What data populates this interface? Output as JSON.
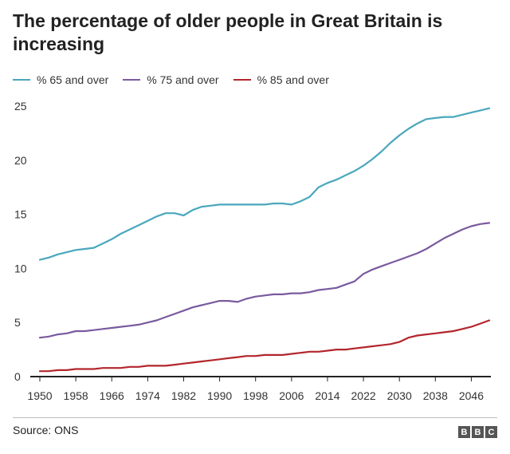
{
  "header": {
    "title": "The percentage of older people in Great Britain is increasing"
  },
  "footer": {
    "source": "Source: ONS",
    "logo": [
      "B",
      "B",
      "C"
    ]
  },
  "chart_data": {
    "type": "line",
    "title": "The percentage of older people in Great Britain is increasing",
    "xlabel": "",
    "ylabel": "",
    "xlim": [
      1950,
      2050
    ],
    "ylim": [
      0,
      25
    ],
    "x_ticks": [
      1950,
      1958,
      1966,
      1974,
      1982,
      1990,
      1998,
      2006,
      2014,
      2022,
      2030,
      2038,
      2046
    ],
    "y_ticks": [
      0,
      5,
      10,
      15,
      20,
      25
    ],
    "grid": false,
    "legend": "top-left",
    "series": [
      {
        "name": "% 65 and over",
        "color": "#4aa7bd",
        "x": [
          1950,
          1952,
          1954,
          1956,
          1958,
          1960,
          1962,
          1964,
          1966,
          1968,
          1970,
          1972,
          1974,
          1976,
          1978,
          1980,
          1982,
          1984,
          1986,
          1988,
          1990,
          1992,
          1994,
          1996,
          1998,
          2000,
          2002,
          2004,
          2006,
          2008,
          2010,
          2012,
          2014,
          2016,
          2018,
          2020,
          2022,
          2024,
          2026,
          2028,
          2030,
          2032,
          2034,
          2036,
          2038,
          2040,
          2042,
          2044,
          2046,
          2048,
          2050
        ],
        "values": [
          10.8,
          11.0,
          11.3,
          11.5,
          11.7,
          11.8,
          11.9,
          12.3,
          12.7,
          13.2,
          13.6,
          14.0,
          14.4,
          14.8,
          15.1,
          15.1,
          14.9,
          15.4,
          15.7,
          15.8,
          15.9,
          15.9,
          15.9,
          15.9,
          15.9,
          15.9,
          16.0,
          16.0,
          15.9,
          16.2,
          16.6,
          17.5,
          17.9,
          18.2,
          18.6,
          19.0,
          19.5,
          20.1,
          20.8,
          21.6,
          22.3,
          22.9,
          23.4,
          23.8,
          23.9,
          24.0,
          24.0,
          24.2,
          24.4,
          24.6,
          24.8
        ]
      },
      {
        "name": "% 75 and over",
        "color": "#7a5a9e",
        "x": [
          1950,
          1952,
          1954,
          1956,
          1958,
          1960,
          1962,
          1964,
          1966,
          1968,
          1970,
          1972,
          1974,
          1976,
          1978,
          1980,
          1982,
          1984,
          1986,
          1988,
          1990,
          1992,
          1994,
          1996,
          1998,
          2000,
          2002,
          2004,
          2006,
          2008,
          2010,
          2012,
          2014,
          2016,
          2018,
          2020,
          2022,
          2024,
          2026,
          2028,
          2030,
          2032,
          2034,
          2036,
          2038,
          2040,
          2042,
          2044,
          2046,
          2048,
          2050
        ],
        "values": [
          3.6,
          3.7,
          3.9,
          4.0,
          4.2,
          4.2,
          4.3,
          4.4,
          4.5,
          4.6,
          4.7,
          4.8,
          5.0,
          5.2,
          5.5,
          5.8,
          6.1,
          6.4,
          6.6,
          6.8,
          7.0,
          7.0,
          6.9,
          7.2,
          7.4,
          7.5,
          7.6,
          7.6,
          7.7,
          7.7,
          7.8,
          8.0,
          8.1,
          8.2,
          8.5,
          8.8,
          9.5,
          9.9,
          10.2,
          10.5,
          10.8,
          11.1,
          11.4,
          11.8,
          12.3,
          12.8,
          13.2,
          13.6,
          13.9,
          14.1,
          14.2
        ]
      },
      {
        "name": "% 85 and over",
        "color": "#b3262c",
        "x": [
          1950,
          1952,
          1954,
          1956,
          1958,
          1960,
          1962,
          1964,
          1966,
          1968,
          1970,
          1972,
          1974,
          1976,
          1978,
          1980,
          1982,
          1984,
          1986,
          1988,
          1990,
          1992,
          1994,
          1996,
          1998,
          2000,
          2002,
          2004,
          2006,
          2008,
          2010,
          2012,
          2014,
          2016,
          2018,
          2020,
          2022,
          2024,
          2026,
          2028,
          2030,
          2032,
          2034,
          2036,
          2038,
          2040,
          2042,
          2044,
          2046,
          2048,
          2050
        ],
        "values": [
          0.5,
          0.5,
          0.6,
          0.6,
          0.7,
          0.7,
          0.7,
          0.8,
          0.8,
          0.8,
          0.9,
          0.9,
          1.0,
          1.0,
          1.0,
          1.1,
          1.2,
          1.3,
          1.4,
          1.5,
          1.6,
          1.7,
          1.8,
          1.9,
          1.9,
          2.0,
          2.0,
          2.0,
          2.1,
          2.2,
          2.3,
          2.3,
          2.4,
          2.5,
          2.5,
          2.6,
          2.7,
          2.8,
          2.9,
          3.0,
          3.2,
          3.6,
          3.8,
          3.9,
          4.0,
          4.1,
          4.2,
          4.4,
          4.6,
          4.9,
          5.2
        ]
      }
    ]
  }
}
